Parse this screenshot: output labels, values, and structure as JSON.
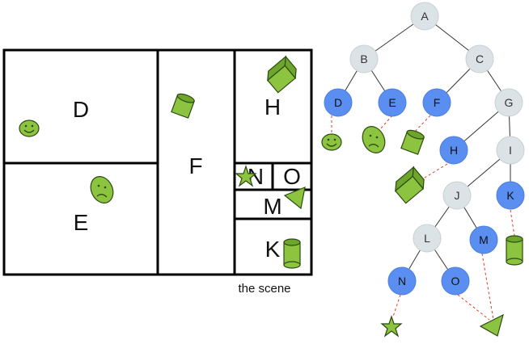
{
  "scene": {
    "caption": "the scene",
    "regions": {
      "D": "D",
      "E": "E",
      "F": "F",
      "H": "H",
      "N": "N",
      "O": "O",
      "M": "M",
      "K": "K"
    }
  },
  "tree": {
    "nodes": {
      "A": "A",
      "B": "B",
      "C": "C",
      "D": "D",
      "E": "E",
      "F": "F",
      "G": "G",
      "H": "H",
      "I": "I",
      "J": "J",
      "K": "K",
      "L": "L",
      "M": "M",
      "N": "N",
      "O": "O"
    },
    "edges": [
      [
        "A",
        "B"
      ],
      [
        "A",
        "C"
      ],
      [
        "B",
        "D"
      ],
      [
        "B",
        "E"
      ],
      [
        "C",
        "F"
      ],
      [
        "C",
        "G"
      ],
      [
        "G",
        "H"
      ],
      [
        "G",
        "I"
      ],
      [
        "I",
        "J"
      ],
      [
        "I",
        "K"
      ],
      [
        "J",
        "L"
      ],
      [
        "J",
        "M"
      ],
      [
        "L",
        "N"
      ],
      [
        "L",
        "O"
      ]
    ],
    "leaf_nodes": [
      "D",
      "E",
      "F",
      "H",
      "K",
      "M",
      "N",
      "O"
    ],
    "internal_nodes": [
      "A",
      "B",
      "C",
      "G",
      "I",
      "J",
      "L"
    ]
  },
  "colors": {
    "leaf_node": "#5a8ef0",
    "internal_node": "#dce3e6",
    "object_fill": "#8cc43f",
    "dashed_link": "#e03a2a"
  }
}
